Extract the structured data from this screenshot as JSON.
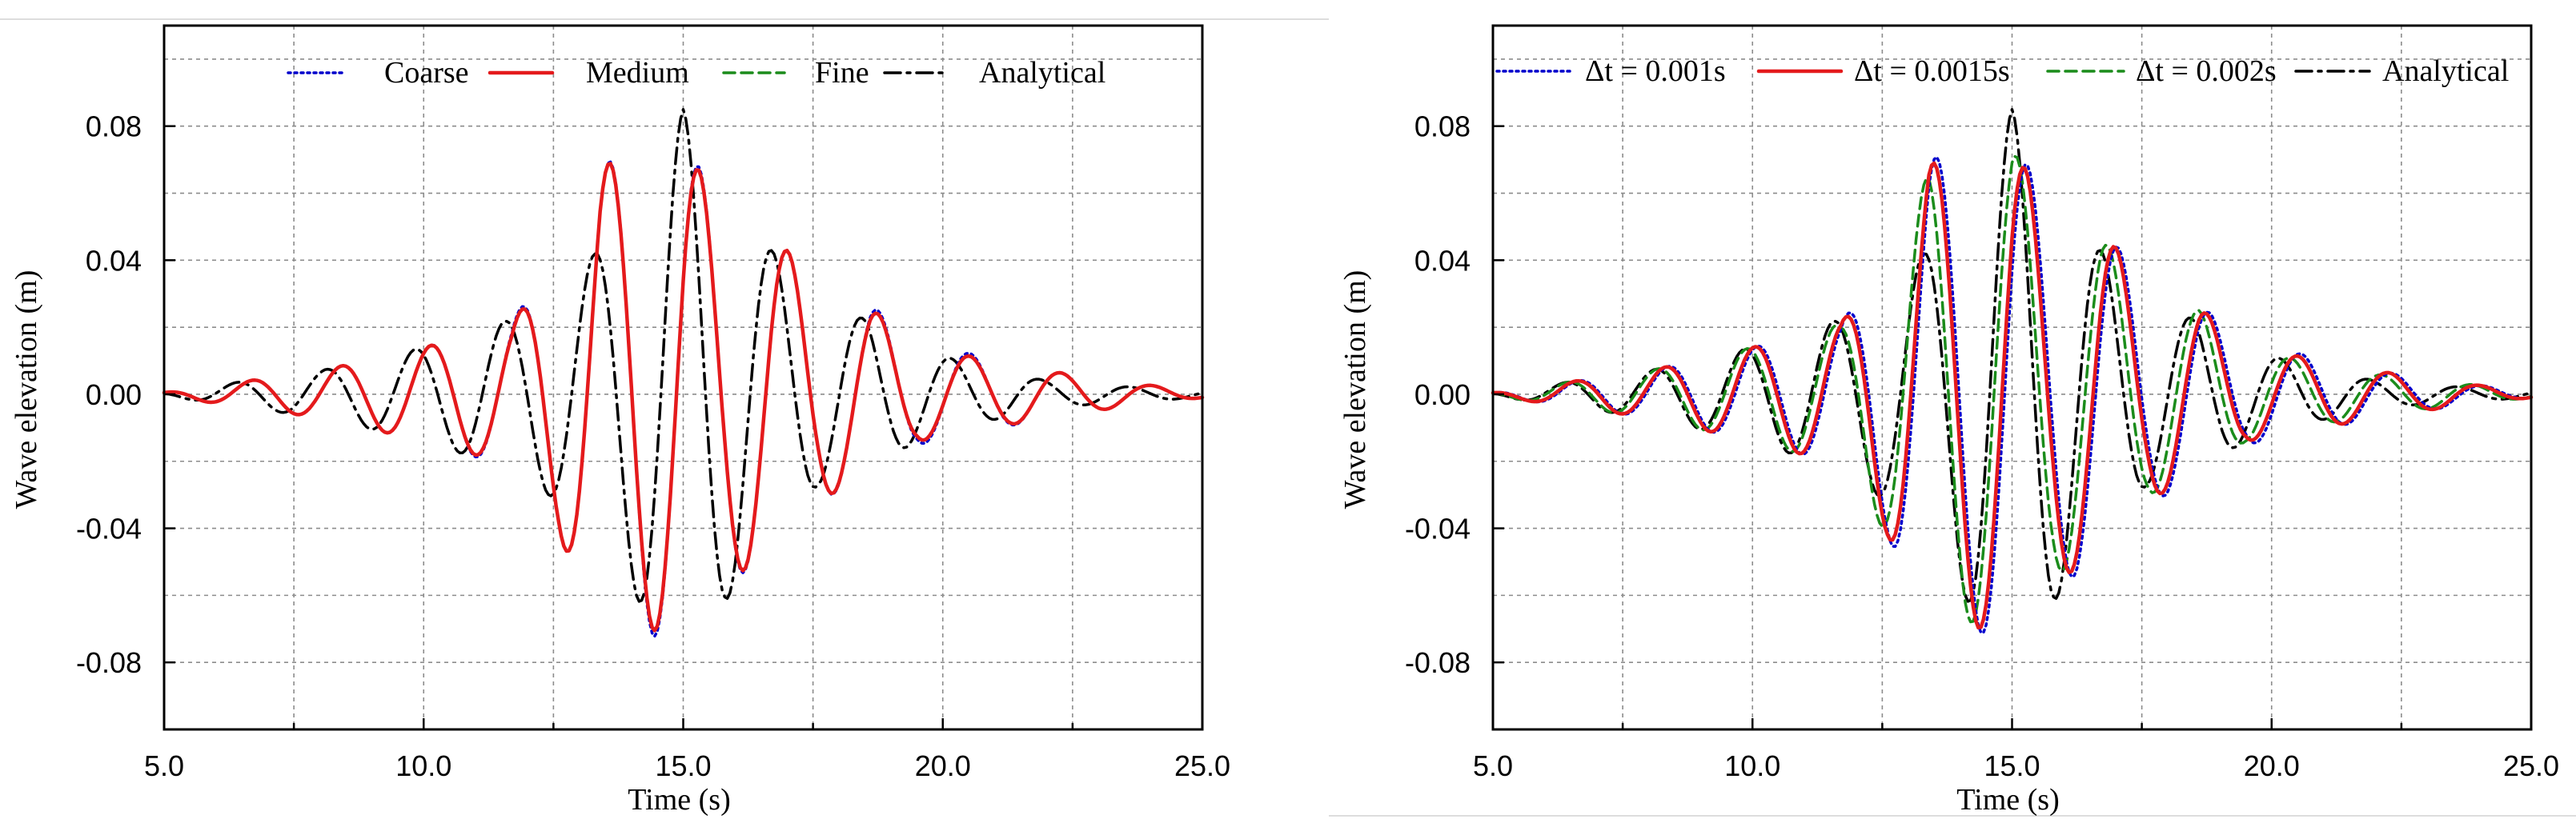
{
  "chart_data": [
    {
      "type": "line",
      "title": "",
      "xlabel": "Time (s)",
      "ylabel": "Wave elevation (m)",
      "xlim": [
        5.0,
        25.0
      ],
      "ylim": [
        -0.1,
        0.11
      ],
      "xticks": [
        5.0,
        10.0,
        15.0,
        20.0,
        25.0
      ],
      "xtick_labels": [
        "5.0",
        "10.0",
        "15.0",
        "20.0",
        "25.0"
      ],
      "yticks": [
        -0.08,
        -0.04,
        0.0,
        0.04,
        0.08
      ],
      "ytick_labels": [
        "-0.08",
        "-0.04",
        "0.00",
        "0.04",
        "0.08"
      ],
      "grid": true,
      "legend_position": "top",
      "x_step": 0.05,
      "series": [
        {
          "name": "Coarse",
          "color": "#0000cc",
          "style": "dotted",
          "envelope": [
            [
              5.0,
              0.0005
            ],
            [
              8.0,
              0.007
            ],
            [
              10.0,
              0.014
            ],
            [
              11.7,
              0.022
            ],
            [
              12.6,
              0.042
            ],
            [
              13.4,
              0.069
            ],
            [
              14.2,
              0.071
            ],
            [
              15.0,
              0.075
            ],
            [
              15.8,
              0.056
            ],
            [
              16.7,
              0.049
            ],
            [
              17.6,
              0.031
            ],
            [
              18.6,
              0.027
            ],
            [
              19.5,
              0.015
            ],
            [
              20.3,
              0.013
            ],
            [
              22.0,
              0.007
            ],
            [
              23.8,
              0.003
            ],
            [
              25.0,
              0.001
            ]
          ],
          "phase": [
            [
              5.0,
              -0.3
            ],
            [
              13.0,
              -0.3
            ],
            [
              18.0,
              -0.3
            ],
            [
              25.0,
              -0.45
            ]
          ]
        },
        {
          "name": "Medium",
          "color": "#e41a1c",
          "style": "solid",
          "envelope": [
            [
              5.0,
              0.0005
            ],
            [
              8.0,
              0.007
            ],
            [
              10.0,
              0.014
            ],
            [
              11.7,
              0.021
            ],
            [
              12.6,
              0.042
            ],
            [
              13.4,
              0.069
            ],
            [
              14.2,
              0.069
            ],
            [
              15.0,
              0.074
            ],
            [
              15.8,
              0.055
            ],
            [
              16.7,
              0.049
            ],
            [
              17.6,
              0.031
            ],
            [
              18.6,
              0.026
            ],
            [
              19.5,
              0.014
            ],
            [
              20.3,
              0.012
            ],
            [
              22.0,
              0.007
            ],
            [
              23.8,
              0.003
            ],
            [
              25.0,
              0.001
            ]
          ],
          "phase": [
            [
              5.0,
              -0.3
            ],
            [
              13.0,
              -0.3
            ],
            [
              18.0,
              -0.3
            ],
            [
              25.0,
              -0.45
            ]
          ]
        },
        {
          "name": "Fine",
          "color": "#1b8c1b",
          "style": "dashed",
          "envelope": [
            [
              5.0,
              0.0005
            ],
            [
              8.0,
              0.007
            ],
            [
              10.0,
              0.014
            ],
            [
              11.7,
              0.021
            ],
            [
              12.6,
              0.042
            ],
            [
              13.4,
              0.069
            ],
            [
              14.2,
              0.069
            ],
            [
              15.0,
              0.074
            ],
            [
              15.8,
              0.055
            ],
            [
              16.7,
              0.049
            ],
            [
              17.6,
              0.031
            ],
            [
              18.6,
              0.026
            ],
            [
              19.5,
              0.014
            ],
            [
              20.3,
              0.012
            ],
            [
              22.0,
              0.007
            ],
            [
              23.8,
              0.003
            ],
            [
              25.0,
              0.001
            ]
          ],
          "phase": [
            [
              5.0,
              -0.3
            ],
            [
              13.0,
              -0.3
            ],
            [
              18.0,
              -0.3
            ],
            [
              25.0,
              -0.45
            ]
          ]
        },
        {
          "name": "Analytical",
          "color": "#000000",
          "style": "dashdot",
          "envelope": [
            [
              5.0,
              0.0005
            ],
            [
              8.0,
              0.007
            ],
            [
              10.0,
              0.014
            ],
            [
              11.6,
              0.022
            ],
            [
              12.5,
              0.031
            ],
            [
              13.3,
              0.042
            ],
            [
              14.2,
              0.063
            ],
            [
              15.0,
              0.085
            ],
            [
              15.8,
              0.062
            ],
            [
              16.7,
              0.043
            ],
            [
              17.6,
              0.027
            ],
            [
              18.6,
              0.022
            ],
            [
              19.5,
              0.014
            ],
            [
              20.3,
              0.01
            ],
            [
              22.0,
              0.004
            ],
            [
              23.8,
              0.002
            ],
            [
              25.0,
              0.001
            ]
          ],
          "phase": [
            [
              5.0,
              0.0
            ],
            [
              25.0,
              0.0
            ]
          ]
        }
      ]
    },
    {
      "type": "line",
      "title": "",
      "xlabel": "Time (s)",
      "ylabel": "Wave elevation (m)",
      "xlim": [
        5.0,
        25.0
      ],
      "ylim": [
        -0.1,
        0.11
      ],
      "xticks": [
        5.0,
        10.0,
        15.0,
        20.0,
        25.0
      ],
      "xtick_labels": [
        "5.0",
        "10.0",
        "15.0",
        "20.0",
        "25.0"
      ],
      "yticks": [
        -0.08,
        -0.04,
        0.0,
        0.04,
        0.08
      ],
      "ytick_labels": [
        "-0.08",
        "-0.04",
        "0.00",
        "0.04",
        "0.08"
      ],
      "grid": true,
      "legend_position": "top",
      "x_step": 0.05,
      "series": [
        {
          "name": "Δt = 0.001s",
          "color": "#0000cc",
          "style": "dotted",
          "envelope": [
            [
              5.0,
              0.0005
            ],
            [
              8.0,
              0.007
            ],
            [
              10.0,
              0.014
            ],
            [
              11.7,
              0.021
            ],
            [
              12.6,
              0.042
            ],
            [
              13.4,
              0.071
            ],
            [
              14.2,
              0.07
            ],
            [
              15.0,
              0.075
            ],
            [
              15.8,
              0.057
            ],
            [
              16.7,
              0.051
            ],
            [
              17.6,
              0.032
            ],
            [
              18.6,
              0.027
            ],
            [
              19.5,
              0.015
            ],
            [
              20.3,
              0.013
            ],
            [
              22.0,
              0.007
            ],
            [
              23.8,
              0.003
            ],
            [
              25.0,
              0.001
            ]
          ],
          "phase": [
            [
              5.0,
              -0.25
            ],
            [
              13.0,
              -0.25
            ],
            [
              18.0,
              -0.35
            ],
            [
              25.0,
              -0.5
            ]
          ]
        },
        {
          "name": "Δt = 0.0015s",
          "color": "#e41a1c",
          "style": "solid",
          "envelope": [
            [
              5.0,
              0.0005
            ],
            [
              8.0,
              0.007
            ],
            [
              10.0,
              0.014
            ],
            [
              11.7,
              0.021
            ],
            [
              12.6,
              0.042
            ],
            [
              13.4,
              0.069
            ],
            [
              14.2,
              0.069
            ],
            [
              15.0,
              0.073
            ],
            [
              15.8,
              0.055
            ],
            [
              16.7,
              0.05
            ],
            [
              17.6,
              0.031
            ],
            [
              18.6,
              0.026
            ],
            [
              19.5,
              0.014
            ],
            [
              20.3,
              0.012
            ],
            [
              22.0,
              0.007
            ],
            [
              23.8,
              0.003
            ],
            [
              25.0,
              0.001
            ]
          ],
          "phase": [
            [
              5.0,
              -0.2
            ],
            [
              13.0,
              -0.2
            ],
            [
              18.0,
              -0.3
            ],
            [
              25.0,
              -0.42
            ]
          ]
        },
        {
          "name": "Δt = 0.002s",
          "color": "#1b8c1b",
          "style": "dashed",
          "envelope": [
            [
              5.0,
              0.0005
            ],
            [
              8.0,
              0.007
            ],
            [
              10.0,
              0.014
            ],
            [
              11.7,
              0.021
            ],
            [
              12.6,
              0.042
            ],
            [
              13.4,
              0.066
            ],
            [
              14.2,
              0.068
            ],
            [
              15.0,
              0.073
            ],
            [
              15.8,
              0.054
            ],
            [
              16.7,
              0.047
            ],
            [
              17.6,
              0.03
            ],
            [
              18.6,
              0.025
            ],
            [
              19.5,
              0.014
            ],
            [
              20.3,
              0.011
            ],
            [
              22.0,
              0.006
            ],
            [
              23.8,
              0.003
            ],
            [
              25.0,
              0.001
            ]
          ],
          "phase": [
            [
              5.0,
              -0.05
            ],
            [
              13.0,
              -0.05
            ],
            [
              18.0,
              -0.15
            ],
            [
              25.0,
              -0.3
            ]
          ]
        },
        {
          "name": "Analytical",
          "color": "#000000",
          "style": "dashdot",
          "envelope": [
            [
              5.0,
              0.0005
            ],
            [
              8.0,
              0.007
            ],
            [
              10.0,
              0.014
            ],
            [
              11.6,
              0.022
            ],
            [
              12.5,
              0.031
            ],
            [
              13.3,
              0.042
            ],
            [
              14.2,
              0.063
            ],
            [
              15.0,
              0.085
            ],
            [
              15.8,
              0.062
            ],
            [
              16.7,
              0.043
            ],
            [
              17.6,
              0.027
            ],
            [
              18.6,
              0.022
            ],
            [
              19.5,
              0.014
            ],
            [
              20.3,
              0.01
            ],
            [
              22.0,
              0.004
            ],
            [
              23.8,
              0.002
            ],
            [
              25.0,
              0.001
            ]
          ],
          "phase": [
            [
              5.0,
              0.0
            ],
            [
              25.0,
              0.0
            ]
          ]
        }
      ]
    }
  ]
}
